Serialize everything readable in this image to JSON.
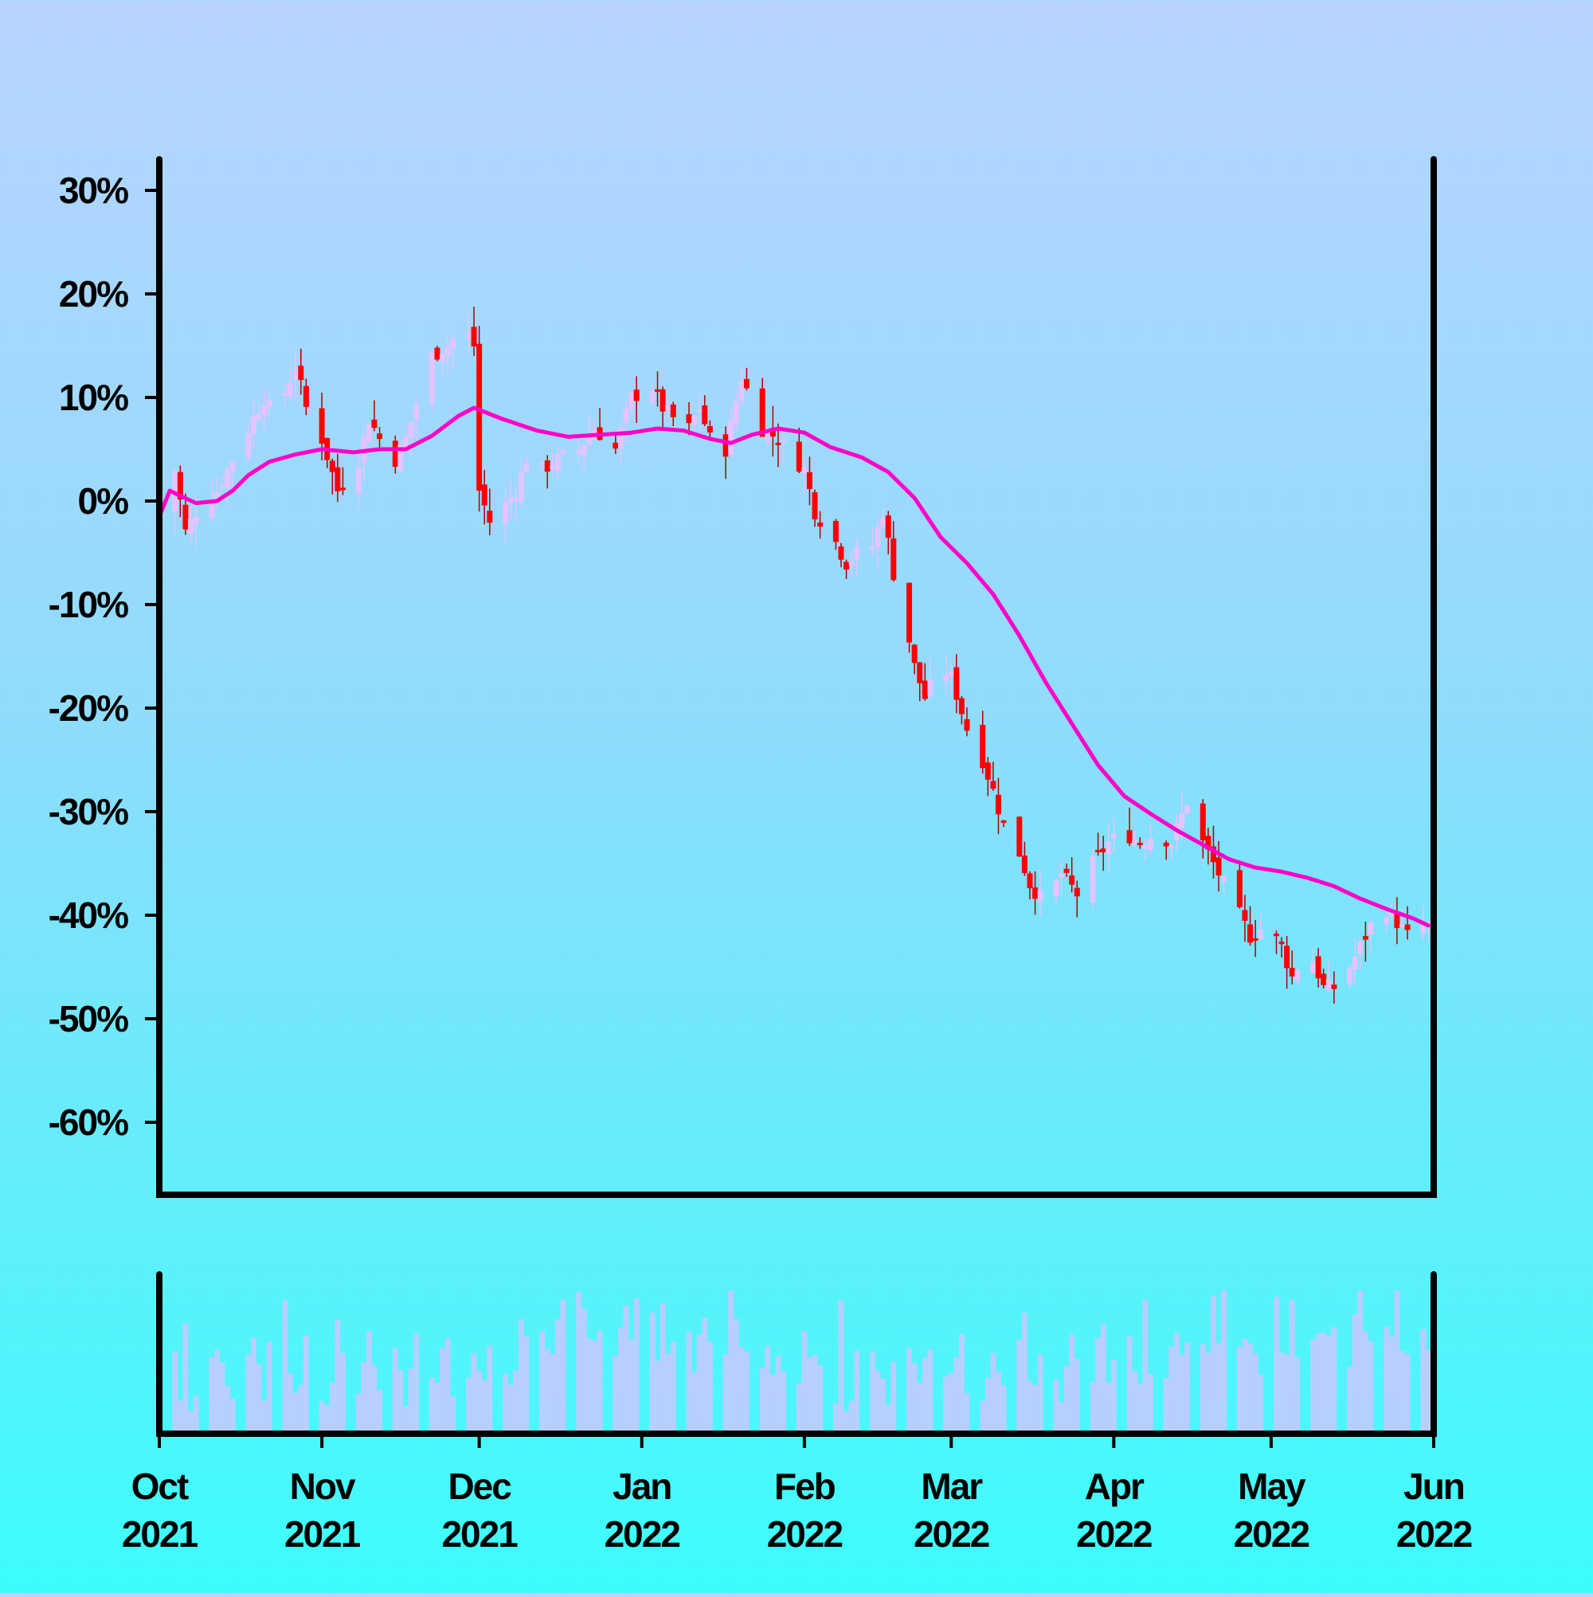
{
  "colors": {
    "candle_down": "#ff0000",
    "candle_up": "#e3c4ff",
    "moving_average": "#ff00c8",
    "volume_bar": "#c8c8ff",
    "axis": "#000000"
  },
  "chart_data": [
    {
      "type": "candlestick",
      "title": "",
      "xlabel": "",
      "ylabel": "",
      "y_unit": "%",
      "ylim": [
        -67,
        33
      ],
      "xlim": [
        "2021-10-01",
        "2022-06-01"
      ],
      "grid": false,
      "legend": "none",
      "y_ticks": [
        {
          "value": 30,
          "label": "30%"
        },
        {
          "value": 20,
          "label": "20%"
        },
        {
          "value": 10,
          "label": "10%"
        },
        {
          "value": 0,
          "label": "0%"
        },
        {
          "value": -10,
          "label": "-10%"
        },
        {
          "value": -20,
          "label": "-20%"
        },
        {
          "value": -30,
          "label": "-30%"
        },
        {
          "value": -40,
          "label": "-40%"
        },
        {
          "value": -50,
          "label": "-50%"
        },
        {
          "value": -60,
          "label": "-60%"
        }
      ],
      "x_ticks": [
        {
          "date": "2021-10-01",
          "month": "Oct",
          "year": "2021"
        },
        {
          "date": "2021-11-01",
          "month": "Nov",
          "year": "2021"
        },
        {
          "date": "2021-12-01",
          "month": "Dec",
          "year": "2021"
        },
        {
          "date": "2022-01-01",
          "month": "Jan",
          "year": "2022"
        },
        {
          "date": "2022-02-01",
          "month": "Feb",
          "year": "2022"
        },
        {
          "date": "2022-03-01",
          "month": "Mar",
          "year": "2022"
        },
        {
          "date": "2022-04-01",
          "month": "Apr",
          "year": "2022"
        },
        {
          "date": "2022-05-01",
          "month": "May",
          "year": "2022"
        },
        {
          "date": "2022-06-01",
          "month": "Jun",
          "year": "2022"
        }
      ],
      "close_series": {
        "name": "",
        "points": [
          [
            "2021-10-01",
            -1
          ],
          [
            "2021-10-04",
            3
          ],
          [
            "2021-10-06",
            -3
          ],
          [
            "2021-10-08",
            -1
          ],
          [
            "2021-10-12",
            1
          ],
          [
            "2021-10-15",
            4
          ],
          [
            "2021-10-19",
            8
          ],
          [
            "2021-10-21",
            10
          ],
          [
            "2021-10-23",
            8
          ],
          [
            "2021-10-27",
            13
          ],
          [
            "2021-10-29",
            9
          ],
          [
            "2021-11-01",
            6
          ],
          [
            "2021-11-04",
            1
          ],
          [
            "2021-11-08",
            4
          ],
          [
            "2021-11-10",
            8
          ],
          [
            "2021-11-12",
            6
          ],
          [
            "2021-11-15",
            4
          ],
          [
            "2021-11-17",
            6
          ],
          [
            "2021-11-20",
            11
          ],
          [
            "2021-11-22",
            14
          ],
          [
            "2021-11-25",
            15
          ],
          [
            "2021-11-28",
            17
          ],
          [
            "2021-11-30",
            15
          ],
          [
            "2021-12-01",
            1
          ],
          [
            "2021-12-03",
            -2
          ],
          [
            "2021-12-05",
            -1
          ],
          [
            "2021-12-08",
            1
          ],
          [
            "2021-12-10",
            4
          ],
          [
            "2021-12-13",
            3
          ],
          [
            "2021-12-16",
            4
          ],
          [
            "2021-12-20",
            5
          ],
          [
            "2021-12-23",
            7
          ],
          [
            "2021-12-27",
            5
          ],
          [
            "2021-12-30",
            10
          ],
          [
            "2022-01-03",
            11
          ],
          [
            "2022-01-05",
            9
          ],
          [
            "2022-01-07",
            8
          ],
          [
            "2022-01-10",
            7
          ],
          [
            "2022-01-12",
            9
          ],
          [
            "2022-01-14",
            6
          ],
          [
            "2022-01-17",
            5
          ],
          [
            "2022-01-20",
            12
          ],
          [
            "2022-01-24",
            7
          ],
          [
            "2022-01-27",
            6
          ],
          [
            "2022-02-01",
            3
          ],
          [
            "2022-02-03",
            -1
          ],
          [
            "2022-02-07",
            -4
          ],
          [
            "2022-02-09",
            -6
          ],
          [
            "2022-02-11",
            -5
          ],
          [
            "2022-02-13",
            -6
          ],
          [
            "2022-02-16",
            -1
          ],
          [
            "2022-02-18",
            -7
          ],
          [
            "2022-02-20",
            -11
          ],
          [
            "2022-02-22",
            -16
          ],
          [
            "2022-02-24",
            -19
          ],
          [
            "2022-02-27",
            -16
          ],
          [
            "2022-03-01",
            -17
          ],
          [
            "2022-03-04",
            -22
          ],
          [
            "2022-03-07",
            -25
          ],
          [
            "2022-03-09",
            -28
          ],
          [
            "2022-03-12",
            -33
          ],
          [
            "2022-03-14",
            -34
          ],
          [
            "2022-03-16",
            -37
          ],
          [
            "2022-03-19",
            -39
          ],
          [
            "2022-03-22",
            -36
          ],
          [
            "2022-03-25",
            -38
          ],
          [
            "2022-03-28",
            -35
          ],
          [
            "2022-03-31",
            -33
          ],
          [
            "2022-04-03",
            -32
          ],
          [
            "2022-04-06",
            -33
          ],
          [
            "2022-04-09",
            -32
          ],
          [
            "2022-04-12",
            -33
          ],
          [
            "2022-04-15",
            -29
          ],
          [
            "2022-04-17",
            -32
          ],
          [
            "2022-04-19",
            -34
          ],
          [
            "2022-04-21",
            -36
          ],
          [
            "2022-04-24",
            -39
          ],
          [
            "2022-04-27",
            -42
          ],
          [
            "2022-04-30",
            -41
          ],
          [
            "2022-05-03",
            -43
          ],
          [
            "2022-05-05",
            -46
          ],
          [
            "2022-05-08",
            -43
          ],
          [
            "2022-05-11",
            -47
          ],
          [
            "2022-05-14",
            -47
          ],
          [
            "2022-05-18",
            -43
          ],
          [
            "2022-05-22",
            -39
          ],
          [
            "2022-05-24",
            -40
          ],
          [
            "2022-05-27",
            -42
          ],
          [
            "2022-05-30",
            -41
          ]
        ]
      },
      "moving_average": {
        "name": "",
        "points": [
          [
            "2021-10-01",
            -1.5
          ],
          [
            "2021-10-03",
            1
          ],
          [
            "2021-10-05",
            0.5
          ],
          [
            "2021-10-08",
            -0.2
          ],
          [
            "2021-10-12",
            0
          ],
          [
            "2021-10-15",
            1
          ],
          [
            "2021-10-18",
            2.5
          ],
          [
            "2021-10-22",
            3.8
          ],
          [
            "2021-10-27",
            4.5
          ],
          [
            "2021-11-01",
            5
          ],
          [
            "2021-11-07",
            4.7
          ],
          [
            "2021-11-12",
            5
          ],
          [
            "2021-11-17",
            5
          ],
          [
            "2021-11-22",
            6.3
          ],
          [
            "2021-11-27",
            8.2
          ],
          [
            "2021-11-30",
            9
          ],
          [
            "2021-12-05",
            8
          ],
          [
            "2021-12-12",
            6.8
          ],
          [
            "2021-12-18",
            6.2
          ],
          [
            "2021-12-24",
            6.4
          ],
          [
            "2021-12-30",
            6.6
          ],
          [
            "2022-01-04",
            7
          ],
          [
            "2022-01-09",
            6.8
          ],
          [
            "2022-01-14",
            6
          ],
          [
            "2022-01-18",
            5.6
          ],
          [
            "2022-01-22",
            6.4
          ],
          [
            "2022-01-27",
            7.0
          ],
          [
            "2022-02-01",
            6.6
          ],
          [
            "2022-02-06",
            5.2
          ],
          [
            "2022-02-12",
            4.2
          ],
          [
            "2022-02-17",
            2.8
          ],
          [
            "2022-02-22",
            0.3
          ],
          [
            "2022-02-27",
            -3.5
          ],
          [
            "2022-03-04",
            -6.0
          ],
          [
            "2022-03-09",
            -9.0
          ],
          [
            "2022-03-14",
            -13.0
          ],
          [
            "2022-03-19",
            -17.5
          ],
          [
            "2022-03-24",
            -21.5
          ],
          [
            "2022-03-29",
            -25.5
          ],
          [
            "2022-04-03",
            -28.5
          ],
          [
            "2022-04-08",
            -30.2
          ],
          [
            "2022-04-13",
            -31.8
          ],
          [
            "2022-04-18",
            -33.2
          ],
          [
            "2022-04-23",
            -34.6
          ],
          [
            "2022-04-28",
            -35.4
          ],
          [
            "2022-05-03",
            -35.8
          ],
          [
            "2022-05-08",
            -36.4
          ],
          [
            "2022-05-13",
            -37.2
          ],
          [
            "2022-05-18",
            -38.4
          ],
          [
            "2022-05-23",
            -39.4
          ],
          [
            "2022-05-28",
            -40.3
          ],
          [
            "2022-05-31",
            -41
          ]
        ]
      }
    },
    {
      "type": "bar",
      "title": "",
      "ylabel": "",
      "grid": false,
      "volume_relative": [
        0.45,
        0.6,
        0.2,
        0.8,
        0.15,
        0.3,
        0.55,
        0.7,
        0.5,
        0.35,
        0.25,
        0.45,
        0.6,
        0.4,
        0.3,
        0.55,
        0.75,
        0.5,
        0.35,
        0.45,
        0.6,
        0.3,
        0.2,
        0.4,
        0.65,
        0.5,
        0.35,
        0.55,
        0.8,
        0.45,
        0.3,
        0.6,
        0.5,
        0.25,
        0.4,
        0.7,
        0.45,
        0.35,
        0.55,
        0.65,
        0.3,
        0.45,
        0.6,
        0.5,
        0.35,
        0.75,
        0.55,
        0.4,
        0.5,
        0.65,
        0.7,
        0.85,
        0.6,
        0.5,
        0.9,
        0.75,
        1.0,
        0.7,
        0.55,
        0.8,
        0.65,
        0.5,
        0.95,
        0.75,
        0.6,
        0.85,
        0.7,
        0.55,
        0.9,
        0.65,
        0.8,
        0.6,
        0.5,
        0.75,
        0.95,
        0.7,
        0.55,
        0.85,
        0.65,
        0.8,
        0.6,
        0.45,
        0.7,
        0.5,
        0.55,
        0.4,
        0.35,
        0.85,
        0.5
      ]
    }
  ]
}
